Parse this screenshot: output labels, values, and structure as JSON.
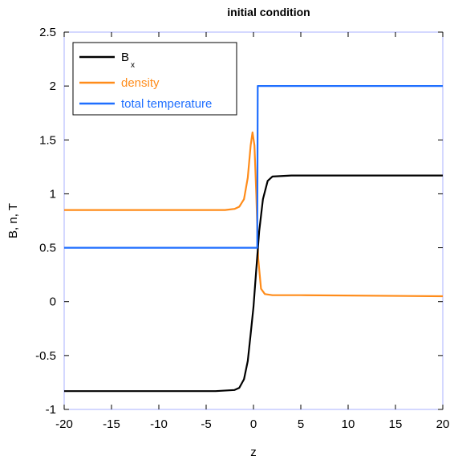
{
  "chart_data": {
    "type": "line",
    "title": "initial condition",
    "xlabel": "z",
    "ylabel": "B, n, T",
    "xlim": [
      -20,
      20
    ],
    "ylim": [
      -1,
      2.5
    ],
    "xticks": [
      "-20",
      "-15",
      "-10",
      "-5",
      "0",
      "5",
      "10",
      "15",
      "20"
    ],
    "yticks": [
      "-1",
      "-0.5",
      "0",
      "0.5",
      "1",
      "1.5",
      "2",
      "2.5"
    ],
    "grid": false,
    "legend_position": "top-left",
    "legend": [
      {
        "label": "B",
        "sub": "x",
        "color": "#000000"
      },
      {
        "label": "density",
        "color": "#ff8c1a"
      },
      {
        "label": "total temperature",
        "color": "#1f6fff"
      }
    ],
    "series": [
      {
        "name": "Bx",
        "color": "#000000",
        "x": [
          -20,
          -10,
          -4,
          -2,
          -1.5,
          -1,
          -0.6,
          -0.3,
          0,
          0.3,
          0.6,
          1,
          1.5,
          2,
          4,
          10,
          20
        ],
        "y": [
          -0.83,
          -0.83,
          -0.83,
          -0.82,
          -0.8,
          -0.72,
          -0.55,
          -0.3,
          -0.05,
          0.3,
          0.65,
          0.95,
          1.12,
          1.16,
          1.17,
          1.17,
          1.17
        ]
      },
      {
        "name": "density",
        "color": "#ff8c1a",
        "x": [
          -20,
          -10,
          -3,
          -2,
          -1.5,
          -1,
          -0.6,
          -0.3,
          -0.1,
          0.1,
          0.3,
          0.5,
          0.8,
          1.2,
          2,
          5,
          20
        ],
        "y": [
          0.85,
          0.85,
          0.85,
          0.86,
          0.88,
          0.95,
          1.15,
          1.45,
          1.57,
          1.45,
          1.0,
          0.4,
          0.12,
          0.07,
          0.06,
          0.06,
          0.05
        ]
      },
      {
        "name": "total temperature",
        "color": "#1f6fff",
        "x": [
          -20,
          -10,
          -1,
          0.4,
          0.45,
          0.55,
          1,
          5,
          10,
          15,
          20
        ],
        "y": [
          0.5,
          0.5,
          0.5,
          0.5,
          2.0,
          2.0,
          2.0,
          2.0,
          2.0,
          2.0,
          2.0
        ]
      }
    ]
  }
}
